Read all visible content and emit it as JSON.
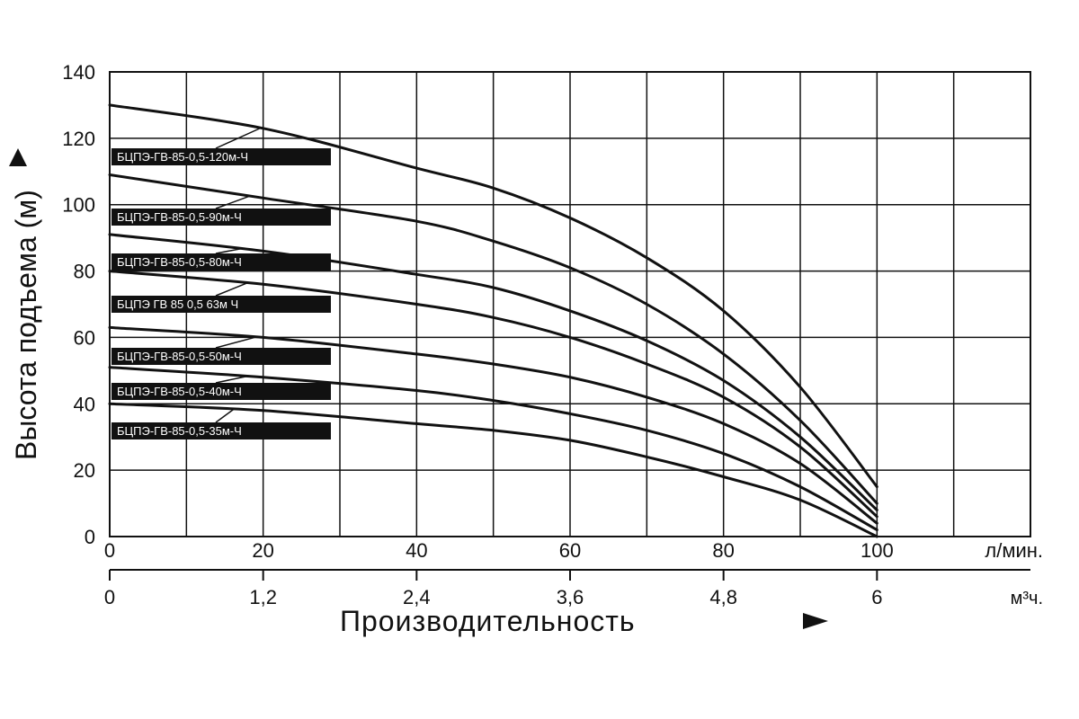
{
  "chart_data": {
    "type": "line",
    "ylabel": "Высота подъема (м)",
    "xlabel": "Производительность",
    "x_unit": "л/мин.",
    "x2_unit": "м³ч.",
    "x_major_ticks": [
      "0",
      "20",
      "40",
      "60",
      "80",
      "100"
    ],
    "x2_ticks": [
      "0",
      "1,2",
      "2,4",
      "3,6",
      "4,8",
      "6"
    ],
    "y_ticks": [
      "0",
      "20",
      "40",
      "60",
      "80",
      "100",
      "120",
      "140"
    ],
    "xlim": [
      0,
      120
    ],
    "ylim": [
      0,
      140
    ],
    "grid": true,
    "series": [
      {
        "name": "БЦПЭ-ГВ-85-0,5-120м-Ч",
        "x": [
          0,
          20,
          40,
          50,
          60,
          70,
          80,
          90,
          100
        ],
        "values": [
          130,
          123,
          111,
          105,
          96,
          84,
          68,
          45,
          15
        ]
      },
      {
        "name": "БЦПЭ-ГВ-85-0,5-90м-Ч",
        "x": [
          0,
          20,
          40,
          50,
          60,
          70,
          80,
          90,
          100
        ],
        "values": [
          109,
          102,
          95,
          89,
          81,
          70,
          55,
          35,
          10
        ]
      },
      {
        "name": "БЦПЭ-ГВ-85-0,5-80м-Ч",
        "x": [
          0,
          20,
          40,
          50,
          60,
          70,
          80,
          90,
          100
        ],
        "values": [
          91,
          86,
          79,
          75,
          68,
          59,
          47,
          30,
          8
        ]
      },
      {
        "name": "БЦПЭ ГВ 85 0,5 63м Ч",
        "x": [
          0,
          20,
          40,
          50,
          60,
          70,
          80,
          90,
          100
        ],
        "values": [
          80,
          76,
          70,
          66,
          60,
          52,
          42,
          27,
          6
        ]
      },
      {
        "name": "БЦПЭ-ГВ-85-0,5-50м-Ч",
        "x": [
          0,
          20,
          40,
          50,
          60,
          70,
          80,
          90,
          100
        ],
        "values": [
          63,
          60,
          55,
          52,
          48,
          42,
          34,
          22,
          4
        ]
      },
      {
        "name": "БЦПЭ-ГВ-85-0,5-40м-Ч",
        "x": [
          0,
          20,
          40,
          50,
          60,
          70,
          80,
          90,
          100
        ],
        "values": [
          51,
          48,
          44,
          41,
          37,
          32,
          25,
          15,
          2
        ]
      },
      {
        "name": "БЦПЭ-ГВ-85-0,5-35м-Ч",
        "x": [
          0,
          20,
          40,
          50,
          60,
          70,
          80,
          90,
          100
        ],
        "values": [
          40,
          38,
          34,
          32,
          29,
          24,
          18,
          11,
          0
        ]
      }
    ]
  }
}
